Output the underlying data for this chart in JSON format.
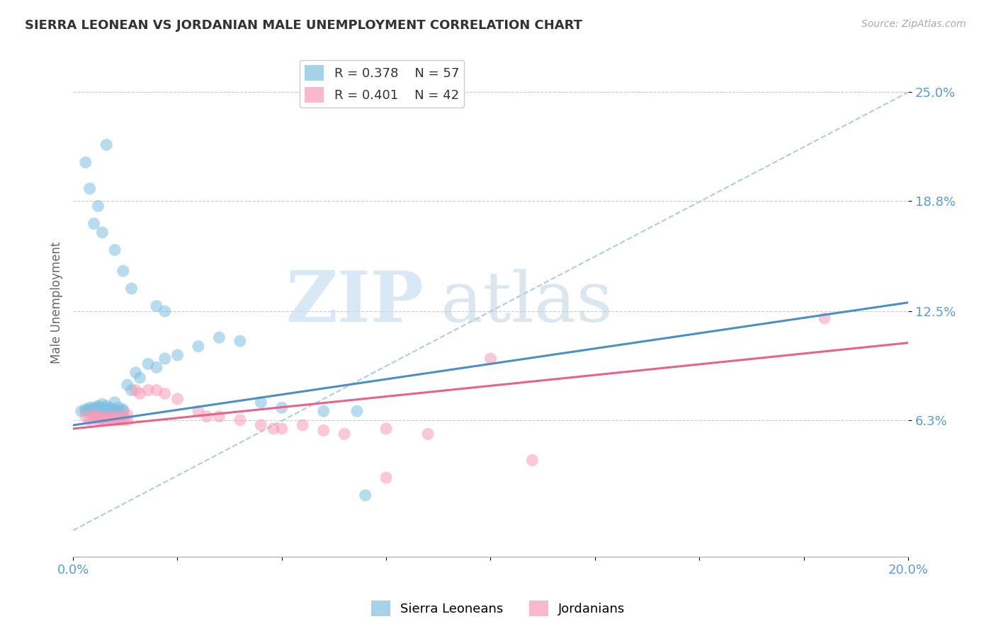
{
  "title": "SIERRA LEONEAN VS JORDANIAN MALE UNEMPLOYMENT CORRELATION CHART",
  "source": "Source: ZipAtlas.com",
  "ylabel": "Male Unemployment",
  "xlim": [
    0.0,
    0.2
  ],
  "ylim": [
    -0.015,
    0.275
  ],
  "yticks": [
    0.063,
    0.125,
    0.188,
    0.25
  ],
  "ytick_labels": [
    "6.3%",
    "12.5%",
    "18.8%",
    "25.0%"
  ],
  "xticks": [
    0.0,
    0.025,
    0.05,
    0.075,
    0.1,
    0.125,
    0.15,
    0.175,
    0.2
  ],
  "xtick_labels": [
    "0.0%",
    "",
    "",
    "",
    "",
    "",
    "",
    "",
    "20.0%"
  ],
  "legend_blue_r": "R = 0.378",
  "legend_blue_n": "N = 57",
  "legend_pink_r": "R = 0.401",
  "legend_pink_n": "N = 42",
  "blue_color": "#7fbfdf",
  "pink_color": "#f99bb8",
  "blue_line_color": "#4a90c4",
  "pink_line_color": "#e8638a",
  "dashed_line_color": "#b0cce0",
  "watermark_zip": "ZIP",
  "watermark_atlas": "atlas",
  "blue_scatter": [
    [
      0.002,
      0.068
    ],
    [
      0.003,
      0.068
    ],
    [
      0.003,
      0.069
    ],
    [
      0.004,
      0.068
    ],
    [
      0.004,
      0.069
    ],
    [
      0.004,
      0.07
    ],
    [
      0.005,
      0.068
    ],
    [
      0.005,
      0.069
    ],
    [
      0.005,
      0.07
    ],
    [
      0.006,
      0.068
    ],
    [
      0.006,
      0.069
    ],
    [
      0.006,
      0.07
    ],
    [
      0.006,
      0.071
    ],
    [
      0.007,
      0.068
    ],
    [
      0.007,
      0.069
    ],
    [
      0.007,
      0.07
    ],
    [
      0.007,
      0.072
    ],
    [
      0.008,
      0.068
    ],
    [
      0.008,
      0.069
    ],
    [
      0.008,
      0.071
    ],
    [
      0.009,
      0.068
    ],
    [
      0.009,
      0.069
    ],
    [
      0.009,
      0.07
    ],
    [
      0.01,
      0.068
    ],
    [
      0.01,
      0.069
    ],
    [
      0.01,
      0.073
    ],
    [
      0.011,
      0.068
    ],
    [
      0.011,
      0.07
    ],
    [
      0.012,
      0.068
    ],
    [
      0.012,
      0.069
    ],
    [
      0.013,
      0.083
    ],
    [
      0.014,
      0.08
    ],
    [
      0.015,
      0.09
    ],
    [
      0.016,
      0.087
    ],
    [
      0.018,
      0.095
    ],
    [
      0.02,
      0.093
    ],
    [
      0.022,
      0.098
    ],
    [
      0.025,
      0.1
    ],
    [
      0.03,
      0.105
    ],
    [
      0.004,
      0.195
    ],
    [
      0.006,
      0.185
    ],
    [
      0.007,
      0.17
    ],
    [
      0.008,
      0.22
    ],
    [
      0.01,
      0.16
    ],
    [
      0.012,
      0.148
    ],
    [
      0.014,
      0.138
    ],
    [
      0.003,
      0.21
    ],
    [
      0.005,
      0.175
    ],
    [
      0.02,
      0.128
    ],
    [
      0.022,
      0.125
    ],
    [
      0.035,
      0.11
    ],
    [
      0.04,
      0.108
    ],
    [
      0.045,
      0.073
    ],
    [
      0.05,
      0.07
    ],
    [
      0.06,
      0.068
    ],
    [
      0.07,
      0.02
    ],
    [
      0.068,
      0.068
    ]
  ],
  "pink_scatter": [
    [
      0.003,
      0.065
    ],
    [
      0.004,
      0.063
    ],
    [
      0.005,
      0.064
    ],
    [
      0.005,
      0.066
    ],
    [
      0.006,
      0.063
    ],
    [
      0.006,
      0.065
    ],
    [
      0.007,
      0.063
    ],
    [
      0.007,
      0.064
    ],
    [
      0.008,
      0.063
    ],
    [
      0.008,
      0.065
    ],
    [
      0.009,
      0.063
    ],
    [
      0.009,
      0.064
    ],
    [
      0.01,
      0.063
    ],
    [
      0.01,
      0.065
    ],
    [
      0.011,
      0.063
    ],
    [
      0.011,
      0.064
    ],
    [
      0.012,
      0.063
    ],
    [
      0.012,
      0.065
    ],
    [
      0.013,
      0.063
    ],
    [
      0.013,
      0.066
    ],
    [
      0.015,
      0.08
    ],
    [
      0.016,
      0.078
    ],
    [
      0.018,
      0.08
    ],
    [
      0.02,
      0.08
    ],
    [
      0.022,
      0.078
    ],
    [
      0.025,
      0.075
    ],
    [
      0.03,
      0.068
    ],
    [
      0.032,
      0.065
    ],
    [
      0.035,
      0.065
    ],
    [
      0.04,
      0.063
    ],
    [
      0.045,
      0.06
    ],
    [
      0.048,
      0.058
    ],
    [
      0.05,
      0.058
    ],
    [
      0.055,
      0.06
    ],
    [
      0.06,
      0.057
    ],
    [
      0.065,
      0.055
    ],
    [
      0.075,
      0.058
    ],
    [
      0.075,
      0.03
    ],
    [
      0.085,
      0.055
    ],
    [
      0.1,
      0.098
    ],
    [
      0.11,
      0.04
    ],
    [
      0.18,
      0.121
    ]
  ],
  "blue_line": [
    [
      0.0,
      0.06
    ],
    [
      0.2,
      0.13
    ]
  ],
  "pink_line": [
    [
      0.0,
      0.058
    ],
    [
      0.2,
      0.107
    ]
  ],
  "dashed_line": [
    [
      0.0,
      0.0
    ],
    [
      0.2,
      0.25
    ]
  ],
  "background_color": "#ffffff",
  "grid_color": "#cccccc"
}
